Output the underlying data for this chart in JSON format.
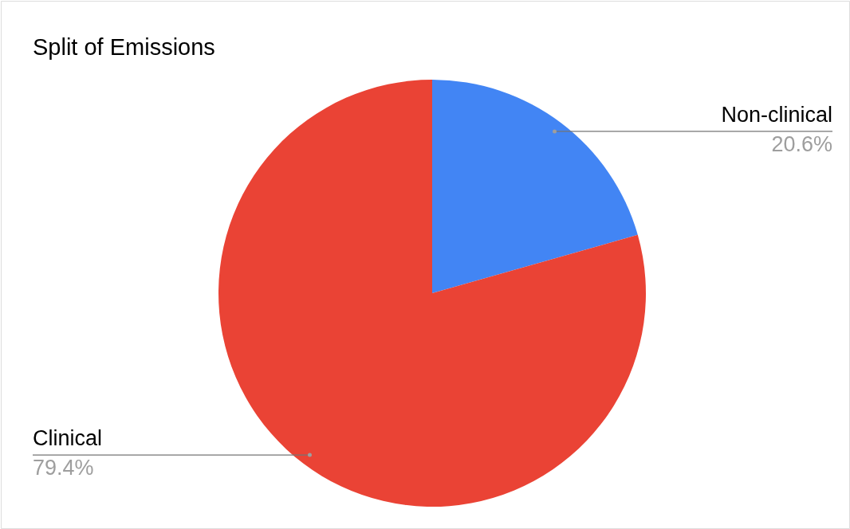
{
  "chart_data": {
    "type": "pie",
    "title": "Split of Emissions",
    "categories": [
      "Non-clinical",
      "Clinical"
    ],
    "values": [
      20.6,
      79.4
    ],
    "colors": [
      "#4285f4",
      "#ea4335"
    ],
    "value_labels": [
      "20.6%",
      "79.4%"
    ]
  }
}
